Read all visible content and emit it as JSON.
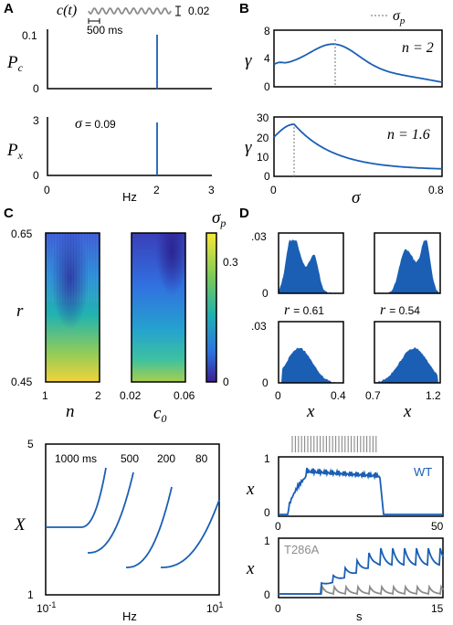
{
  "panels": {
    "A": {
      "letter": "A",
      "signal_label": "c(t)",
      "scale_value": "0.02",
      "time_scale": "500 ms",
      "top": {
        "ylabel": "P",
        "ylabel_sub": "c",
        "yticks": [
          "0.1",
          "0"
        ]
      },
      "bottom": {
        "ylabel": "P",
        "ylabel_sub": "x",
        "yticks": [
          "3",
          "0"
        ],
        "annotation_symbol": "σ",
        "annotation_value": "= 0.09"
      },
      "xticks": [
        "0",
        "2",
        "3"
      ],
      "xlabel": "Hz"
    },
    "B": {
      "letter": "B",
      "legend": "σ",
      "legend_sub": "p",
      "top": {
        "ylabel": "γ",
        "yticks": [
          "8",
          "4",
          "0"
        ],
        "n_label": "n = 2"
      },
      "bottom": {
        "ylabel": "γ",
        "yticks": [
          "30",
          "20",
          "10",
          "0"
        ],
        "n_label": "n = 1.6"
      },
      "xticks": [
        "0",
        "0.8"
      ],
      "xlabel": "σ"
    },
    "C": {
      "letter": "C",
      "ylabel": "r",
      "yticks": [
        "0.65",
        "0.45"
      ],
      "left_xticks": [
        "1",
        "2"
      ],
      "left_xlabel": "n",
      "right_xticks": [
        "0.02",
        "0.06"
      ],
      "right_xlabel": "c",
      "right_xlabel_sub": "0",
      "colorbar_label": "σ",
      "colorbar_label_sub": "p",
      "colorbar_ticks": [
        "0.3",
        "0"
      ]
    },
    "C_lower": {
      "ylabel": "X",
      "yticks": [
        "5",
        "1"
      ],
      "xticks": [
        "10",
        "10"
      ],
      "xtick_exponents": [
        "-1",
        "1"
      ],
      "xlabel": "Hz",
      "curve_labels": [
        "1000 ms",
        "500",
        "200",
        "80"
      ]
    },
    "D": {
      "letter": "D",
      "yticks_top": [
        ".03",
        "0"
      ],
      "yticks_bottom": [
        ".03",
        "0"
      ],
      "r_left": "r",
      "r_left_value": "= 0.61",
      "r_right": "r",
      "r_right_value": "= 0.54",
      "left_xticks": [
        "0",
        "0.4"
      ],
      "right_xticks": [
        "0.7",
        "1.2"
      ],
      "xlabel": "x"
    },
    "D_lower": {
      "wt_label": "WT",
      "mut_label": "T286A",
      "ylabel": "x",
      "top_yticks": [
        "1",
        "0"
      ],
      "top_xticks": [
        "0",
        "50"
      ],
      "bottom_yticks": [
        "1",
        "0"
      ],
      "bottom_xticks": [
        "0",
        "15"
      ],
      "xlabel": "s"
    }
  },
  "colors": {
    "curve": "#1a5fb4",
    "gray": "#8c8c8c"
  }
}
